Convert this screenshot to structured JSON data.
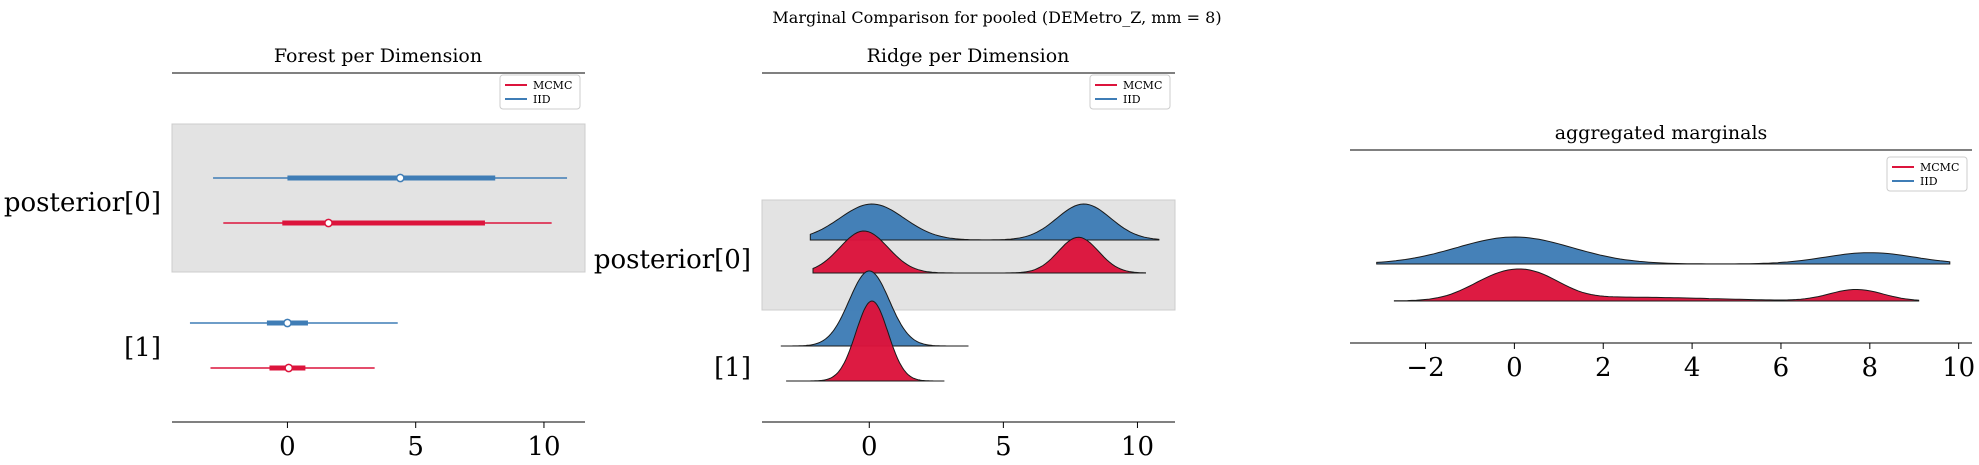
{
  "figure": {
    "suptitle": "Marginal Comparison for pooled (DEMetro_Z, mm = 8)"
  },
  "colors": {
    "mcmc": "#DC143C",
    "iid": "#3F7DB6",
    "band": "#E3E3E3"
  },
  "chart_data": [
    {
      "type": "forest",
      "title": "Forest per Dimension",
      "xlabel": "",
      "ylabel": "",
      "xlim": [
        -4.5,
        11.6
      ],
      "x_ticks": [
        0,
        5,
        10
      ],
      "y_tick_labels": [
        "posterior[0]",
        "[1]"
      ],
      "legend": {
        "placement": "top-right",
        "entries": [
          "MCMC",
          "IID"
        ]
      },
      "series": [
        {
          "name": "MCMC",
          "rows": [
            {
              "label": "posterior[0]",
              "hdi94": [
                -2.5,
                10.3
              ],
              "hdi50": [
                -0.2,
                7.7
              ],
              "median": 1.6
            },
            {
              "label": "[1]",
              "hdi94": [
                -3.0,
                3.4
              ],
              "hdi50": [
                -0.7,
                0.7
              ],
              "median": 0.05
            }
          ]
        },
        {
          "name": "IID",
          "rows": [
            {
              "label": "posterior[0]",
              "hdi94": [
                -2.9,
                10.9
              ],
              "hdi50": [
                0.0,
                8.1
              ],
              "median": 4.4
            },
            {
              "label": "[1]",
              "hdi94": [
                -3.8,
                4.3
              ],
              "hdi50": [
                -0.8,
                0.8
              ],
              "median": 0.0
            }
          ]
        }
      ]
    },
    {
      "type": "ridge",
      "title": "Ridge per Dimension",
      "xlabel": "",
      "ylabel": "",
      "xlim": [
        -4.0,
        11.4
      ],
      "x_ticks": [
        0,
        5,
        10
      ],
      "y_tick_labels": [
        "posterior[0]",
        "[1]"
      ],
      "legend": {
        "placement": "top-right",
        "entries": [
          "MCMC",
          "IID"
        ]
      },
      "series": [
        {
          "name": "IID",
          "rows": [
            {
              "label": "posterior[0]",
              "range": [
                -2.2,
                10.8
              ],
              "modes": [
                [
                  0.1,
                  1.0,
                  1.2
                ],
                [
                  8.0,
                  1.0,
                  1.0
                ]
              ]
            },
            {
              "label": "[1]",
              "range": [
                -3.3,
                3.7
              ],
              "modes": [
                [
                  0.0,
                  1.0,
                  0.75
                ]
              ]
            }
          ]
        },
        {
          "name": "MCMC",
          "rows": [
            {
              "label": "posterior[0]",
              "range": [
                -2.1,
                10.3
              ],
              "modes": [
                [
                  -0.2,
                  1.0,
                  0.9
                ],
                [
                  7.8,
                  0.85,
                  0.75
                ]
              ]
            },
            {
              "label": "[1]",
              "range": [
                -3.1,
                2.8
              ],
              "modes": [
                [
                  0.1,
                  1.0,
                  0.6
                ]
              ]
            }
          ]
        }
      ]
    },
    {
      "type": "area",
      "title": "aggregated marginals",
      "xlabel": "",
      "ylabel": "",
      "xlim": [
        -3.7,
        10.3
      ],
      "x_ticks": [
        -2,
        0,
        2,
        4,
        6,
        8,
        10
      ],
      "legend": {
        "placement": "top-right",
        "entries": [
          "MCMC",
          "IID"
        ]
      },
      "series": [
        {
          "name": "IID",
          "range": [
            -3.1,
            9.8
          ],
          "modes": [
            [
              0.0,
              1.0,
              1.3
            ],
            [
              8.0,
              0.42,
              1.0
            ]
          ]
        },
        {
          "name": "MCMC",
          "range": [
            -2.7,
            9.1
          ],
          "modes": [
            [
              -0.3,
              0.9,
              0.7
            ],
            [
              0.6,
              0.6,
              0.6
            ],
            [
              7.7,
              0.45,
              0.6
            ],
            [
              2.5,
              0.15,
              2.0
            ]
          ]
        }
      ]
    }
  ]
}
